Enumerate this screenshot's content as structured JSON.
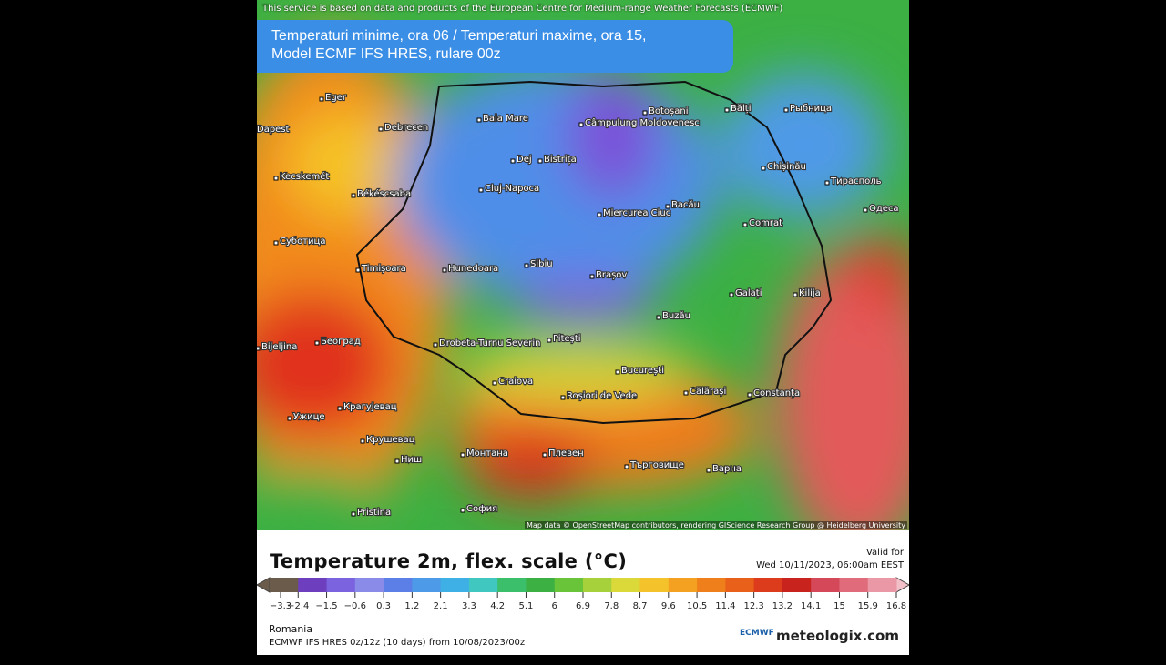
{
  "attribution": "This service is based on data and products of the European Centre for Medium-range Weather Forecasts (ECMWF)",
  "title_lines": [
    "Temperaturi minime, ora 06 / Temperaturi maxime, ora 15,",
    "Model ECMF IFS HRES, rulare 00z"
  ],
  "cities": [
    "Baia Mare",
    "Câmpulung Moldovenesc",
    "Botoșani",
    "Bălți",
    "Рыбница",
    "Debrecen",
    "Dej",
    "Bistrița",
    "Chișinău",
    "Cluj-Napoca",
    "Тирасполь",
    "Miercurea Ciuc",
    "Bacău",
    "Comrat",
    "Одеса",
    "Timișoara",
    "Hunedoara",
    "Sibiu",
    "Brașov",
    "Galați",
    "Kilija",
    "Buzău",
    "Београд",
    "Drobeta-Turnu Severin",
    "Pitești",
    "București",
    "Craiova",
    "Roșiori de Vede",
    "Călărași",
    "Constanța",
    "Крагујевац",
    "Крушевац",
    "Монтана",
    "Плевен",
    "Търговище",
    "Варна",
    "Ниш",
    "София",
    "Pristina",
    "Eger",
    "Kecskemét",
    "Békéscsaba",
    "Суботица",
    "Bijeljina",
    "Ужице",
    "Dapest"
  ],
  "map_credit": "Map data © OpenStreetMap contributors, rendering GIScience Research Group @ Heidelberg University",
  "legend": {
    "title": "Temperature 2m, flex. scale (°C)",
    "ticks": [
      "−3.3",
      "−2.4",
      "−1.5",
      "−0.6",
      "0.3",
      "1.2",
      "2.1",
      "3.3",
      "4.2",
      "5.1",
      "6",
      "6.9",
      "7.8",
      "8.7",
      "9.6",
      "10.5",
      "11.4",
      "12.3",
      "13.2",
      "14.1",
      "15",
      "15.9",
      "16.8"
    ]
  },
  "valid_label": "Valid for",
  "valid_time": "Wed 10/11/2023, 06:00am EEST",
  "region": "Romania",
  "run": "ECMWF IFS HRES 0z/12z (10 days) from  10/08/2023/00z",
  "logos": [
    "ECMWF",
    "meteologix.com"
  ]
}
